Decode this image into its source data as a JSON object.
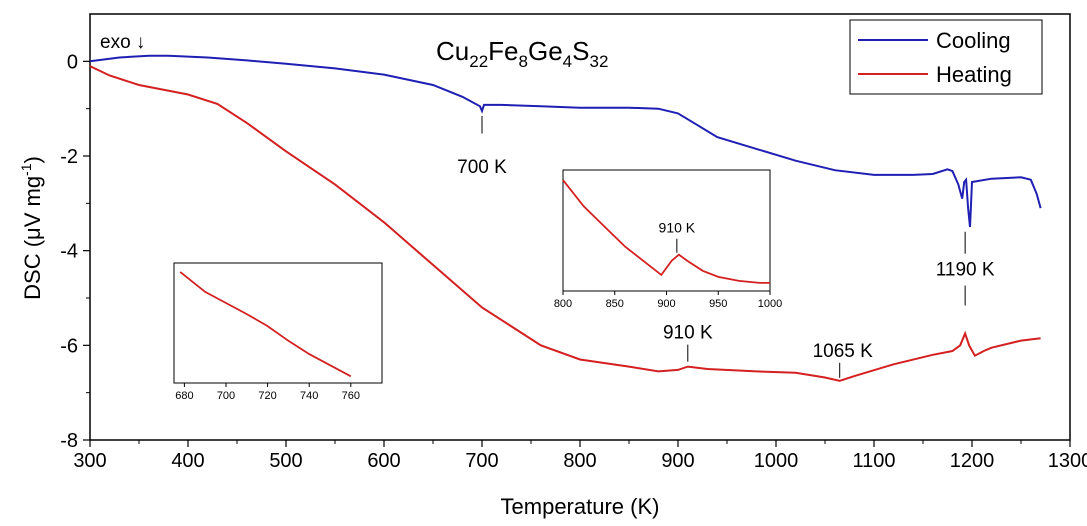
{
  "chart_data": {
    "type": "line",
    "title": "Cu22Fe8Ge4S32",
    "title_parts": {
      "base1": "Cu",
      "sub1": "22",
      "base2": "Fe",
      "sub2": "8",
      "base3": "Ge",
      "sub3": "4",
      "base4": "S",
      "sub4": "32"
    },
    "xlabel": "Temperature (K)",
    "ylabel": "DSC (μV mg-1)",
    "ylabel_parts": {
      "main": "DSC (μV mg",
      "sup": "-1",
      "end": ")"
    },
    "xlim": [
      300,
      1300
    ],
    "ylim": [
      -8,
      1
    ],
    "xticks": [
      300,
      400,
      500,
      600,
      700,
      800,
      900,
      1000,
      1100,
      1200,
      1300
    ],
    "yticks": [
      0,
      -2,
      -4,
      -6,
      -8
    ],
    "grid": false,
    "legend_position": "top-right",
    "exo_label": "exo ↓",
    "series": [
      {
        "name": "Cooling",
        "color": "#1f1fb4",
        "points": [
          [
            300,
            0
          ],
          [
            330,
            0.08
          ],
          [
            360,
            0.12
          ],
          [
            380,
            0.12
          ],
          [
            420,
            0.08
          ],
          [
            460,
            0.02
          ],
          [
            500,
            -0.05
          ],
          [
            550,
            -0.15
          ],
          [
            600,
            -0.28
          ],
          [
            650,
            -0.5
          ],
          [
            680,
            -0.75
          ],
          [
            698,
            -0.95
          ],
          [
            700,
            -1.05
          ],
          [
            702,
            -0.92
          ],
          [
            720,
            -0.92
          ],
          [
            760,
            -0.95
          ],
          [
            800,
            -0.98
          ],
          [
            850,
            -0.98
          ],
          [
            880,
            -1.0
          ],
          [
            900,
            -1.1
          ],
          [
            920,
            -1.35
          ],
          [
            940,
            -1.6
          ],
          [
            980,
            -1.85
          ],
          [
            1020,
            -2.1
          ],
          [
            1060,
            -2.3
          ],
          [
            1100,
            -2.4
          ],
          [
            1140,
            -2.4
          ],
          [
            1160,
            -2.38
          ],
          [
            1175,
            -2.28
          ],
          [
            1180,
            -2.32
          ],
          [
            1186,
            -2.6
          ],
          [
            1190,
            -2.9
          ],
          [
            1192,
            -2.55
          ],
          [
            1194,
            -2.5
          ],
          [
            1196,
            -3.1
          ],
          [
            1198,
            -3.5
          ],
          [
            1200,
            -2.55
          ],
          [
            1220,
            -2.48
          ],
          [
            1250,
            -2.45
          ],
          [
            1260,
            -2.5
          ],
          [
            1266,
            -2.8
          ],
          [
            1270,
            -3.1
          ]
        ]
      },
      {
        "name": "Heating",
        "color": "#d42020",
        "points": [
          [
            300,
            -0.1
          ],
          [
            320,
            -0.3
          ],
          [
            350,
            -0.5
          ],
          [
            400,
            -0.7
          ],
          [
            430,
            -0.9
          ],
          [
            460,
            -1.3
          ],
          [
            500,
            -1.9
          ],
          [
            550,
            -2.6
          ],
          [
            600,
            -3.4
          ],
          [
            650,
            -4.3
          ],
          [
            700,
            -5.2
          ],
          [
            730,
            -5.6
          ],
          [
            760,
            -6.0
          ],
          [
            800,
            -6.3
          ],
          [
            850,
            -6.45
          ],
          [
            880,
            -6.55
          ],
          [
            900,
            -6.52
          ],
          [
            910,
            -6.45
          ],
          [
            930,
            -6.5
          ],
          [
            980,
            -6.55
          ],
          [
            1020,
            -6.58
          ],
          [
            1050,
            -6.68
          ],
          [
            1065,
            -6.75
          ],
          [
            1080,
            -6.65
          ],
          [
            1120,
            -6.4
          ],
          [
            1160,
            -6.2
          ],
          [
            1180,
            -6.12
          ],
          [
            1188,
            -6.0
          ],
          [
            1193,
            -5.75
          ],
          [
            1197,
            -6.0
          ],
          [
            1203,
            -6.22
          ],
          [
            1212,
            -6.12
          ],
          [
            1220,
            -6.05
          ],
          [
            1250,
            -5.9
          ],
          [
            1270,
            -5.85
          ]
        ]
      }
    ],
    "annotations": [
      {
        "text": "700 K",
        "x": 700,
        "y": -1.05
      },
      {
        "text": "910 K",
        "x": 910,
        "y": -6.45
      },
      {
        "text": "1065 K",
        "x": 1065,
        "y": -6.75
      },
      {
        "text": "1190 K",
        "x": 1193,
        "y": -5.75
      }
    ],
    "insets": [
      {
        "xlim": [
          675,
          775
        ],
        "xticks": [
          680,
          700,
          720,
          740,
          760
        ],
        "ylim": [
          -7,
          -4.3
        ],
        "series": [
          {
            "name": "Heating",
            "points": [
              [
                678,
                -4.5
              ],
              [
                690,
                -4.95
              ],
              [
                700,
                -5.2
              ],
              [
                710,
                -5.45
              ],
              [
                720,
                -5.72
              ],
              [
                730,
                -6.05
              ],
              [
                740,
                -6.35
              ],
              [
                750,
                -6.6
              ],
              [
                760,
                -6.85
              ]
            ]
          }
        ]
      },
      {
        "xlim": [
          800,
          1000
        ],
        "xticks": [
          800,
          850,
          900,
          950,
          1000
        ],
        "ylim": [
          -6.7,
          -6.1
        ],
        "annotation": {
          "text": "910 K",
          "x": 910,
          "y": -6.53
        },
        "series": [
          {
            "name": "Heating",
            "points": [
              [
                800,
                -6.15
              ],
              [
                820,
                -6.28
              ],
              [
                840,
                -6.38
              ],
              [
                860,
                -6.48
              ],
              [
                880,
                -6.56
              ],
              [
                895,
                -6.62
              ],
              [
                905,
                -6.55
              ],
              [
                912,
                -6.52
              ],
              [
                920,
                -6.55
              ],
              [
                935,
                -6.6
              ],
              [
                950,
                -6.63
              ],
              [
                970,
                -6.65
              ],
              [
                990,
                -6.66
              ],
              [
                1000,
                -6.66
              ]
            ]
          }
        ]
      }
    ]
  }
}
